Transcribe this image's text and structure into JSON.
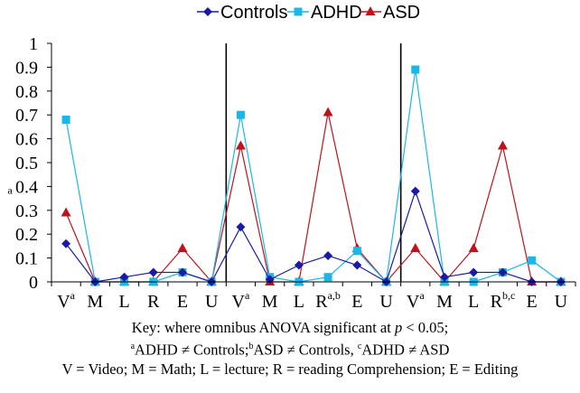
{
  "chart_data": {
    "type": "line",
    "title": "",
    "xlabel": "",
    "ylabel": "",
    "ylim": [
      0,
      1
    ],
    "yticks": [
      "0",
      "0.1",
      "0.2",
      "0.3",
      "0.4",
      "0.5",
      "0.6",
      "0.7",
      "0.8",
      "0.9",
      "1"
    ],
    "stray_label": "a",
    "grid": false,
    "legend_position": "top",
    "categories": [
      {
        "base": "V",
        "sup": "a"
      },
      {
        "base": "M",
        "sup": ""
      },
      {
        "base": "L",
        "sup": ""
      },
      {
        "base": "R",
        "sup": ""
      },
      {
        "base": "E",
        "sup": ""
      },
      {
        "base": "U",
        "sup": ""
      },
      {
        "base": "V",
        "sup": "a"
      },
      {
        "base": "M",
        "sup": ""
      },
      {
        "base": "L",
        "sup": ""
      },
      {
        "base": "R",
        "sup": "a,b"
      },
      {
        "base": "E",
        "sup": ""
      },
      {
        "base": "U",
        "sup": ""
      },
      {
        "base": "V",
        "sup": "a"
      },
      {
        "base": "M",
        "sup": ""
      },
      {
        "base": "L",
        "sup": ""
      },
      {
        "base": "R",
        "sup": "b,c"
      },
      {
        "base": "E",
        "sup": ""
      },
      {
        "base": "U",
        "sup": ""
      }
    ],
    "series": [
      {
        "name": "Controls",
        "color": "#1a1aa6",
        "marker": "diamond",
        "values": [
          0.16,
          0,
          0.02,
          0.04,
          0.04,
          0,
          0.23,
          0.01,
          0.07,
          0.11,
          0.07,
          0,
          0.38,
          0.02,
          0.04,
          0.04,
          0,
          0
        ]
      },
      {
        "name": "ADHD",
        "color": "#1ab8e8",
        "marker": "square",
        "values": [
          0.68,
          0,
          0,
          0,
          0.04,
          0,
          0.7,
          0.02,
          0,
          0.02,
          0.13,
          0,
          0.89,
          0,
          0,
          0.04,
          0.09,
          0
        ]
      },
      {
        "name": "ASD",
        "color": "#c0121a",
        "marker": "triangle",
        "values": [
          0.29,
          0,
          0,
          0,
          0.14,
          0,
          0.57,
          0,
          0,
          0.71,
          0.14,
          0,
          0.14,
          0,
          0.14,
          0.57,
          0,
          0
        ]
      }
    ]
  },
  "caption": {
    "line1_pre": "Key: where omnibus ANOVA significant at ",
    "line1_p": "p",
    "line1_post": " < 0.05;",
    "line2_a_sup": "a",
    "line2_a": "ADHD ≠ Controls;",
    "line2_b_sup": "b",
    "line2_b": "ASD ≠ Controls, ",
    "line2_c_sup": "c",
    "line2_c": "ADHD ≠ ASD",
    "line3": "V = Video; M = Math; L = lecture; R = reading Comprehension; E = Editing"
  }
}
